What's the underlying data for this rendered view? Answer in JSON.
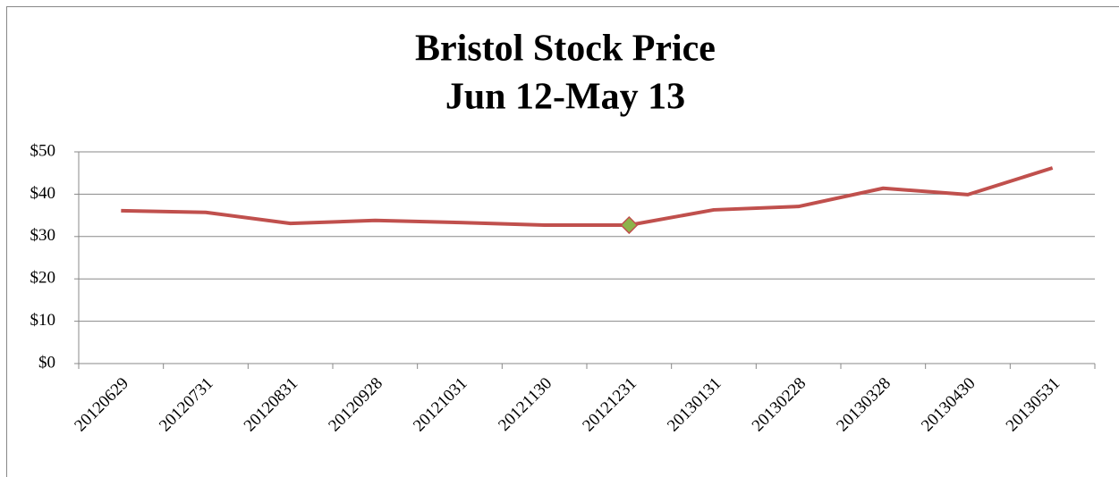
{
  "chart_data": {
    "type": "line",
    "title": "Bristol Stock Price",
    "subtitle": "Jun 12-May 13",
    "categories": [
      "20120629",
      "20120731",
      "20120831",
      "20120928",
      "20121031",
      "20121130",
      "20121231",
      "20130131",
      "20130228",
      "20130328",
      "20130430",
      "20130531"
    ],
    "series": [
      {
        "name": "Bristol",
        "color": "#c0504d",
        "values": [
          36.1,
          35.7,
          33.1,
          33.8,
          33.3,
          32.7,
          32.7,
          36.3,
          37.1,
          41.4,
          39.9,
          46.2
        ]
      }
    ],
    "highlight_point": 6,
    "highlight_color": "#8db34a",
    "ylim": [
      0,
      50
    ],
    "yticks": [
      {
        "value": 0,
        "label": "$0"
      },
      {
        "value": 10,
        "label": "$10"
      },
      {
        "value": 20,
        "label": "$20"
      },
      {
        "value": 30,
        "label": "$30"
      },
      {
        "value": 40,
        "label": "$40"
      },
      {
        "value": 50,
        "label": "$50"
      }
    ],
    "grid": true
  }
}
